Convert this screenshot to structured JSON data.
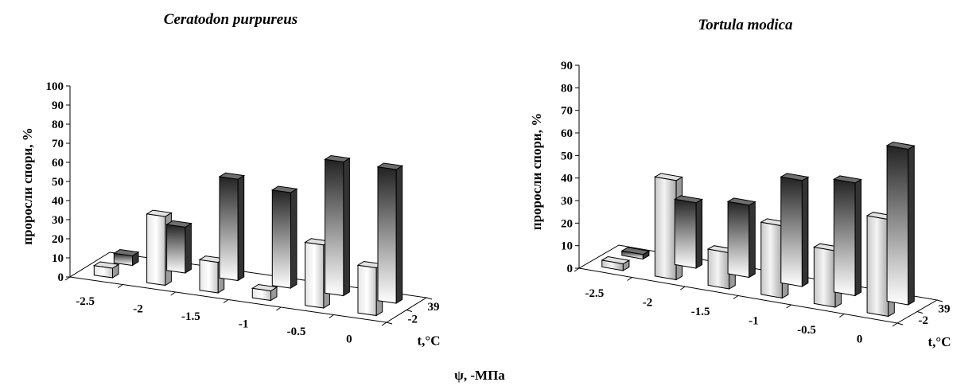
{
  "shared_xlabel": "ψ,  -МПа",
  "chart_data": [
    {
      "type": "bar",
      "title": "Ceratodon purpureus",
      "ylabel": "проросли спори, %",
      "xlabel": "",
      "zlabel": "t,°C",
      "categories": [
        "-2.5",
        "-2",
        "-1.5",
        "-1",
        "-0.5",
        "0"
      ],
      "depth_categories": [
        "39",
        "-2"
      ],
      "ylim": [
        0,
        100
      ],
      "yticks": [
        0,
        10,
        20,
        30,
        40,
        50,
        60,
        70,
        80,
        90,
        100
      ],
      "series": [
        {
          "name": "39",
          "values": [
            5,
            24,
            53,
            50,
            70,
            70
          ]
        },
        {
          "name": "-2",
          "values": [
            5,
            36,
            16,
            5,
            33,
            25
          ]
        }
      ]
    },
    {
      "type": "bar",
      "title": "Tortula modica",
      "ylabel": "проросли спори, %",
      "xlabel": "",
      "zlabel": "t,°C",
      "categories": [
        "-2.5",
        "-2",
        "-1.5",
        "-1",
        "-0.5",
        "0"
      ],
      "depth_categories": [
        "39",
        "-2"
      ],
      "ylim": [
        0,
        90
      ],
      "yticks": [
        0,
        10,
        20,
        30,
        40,
        50,
        60,
        70,
        80,
        90
      ],
      "series": [
        {
          "name": "39",
          "values": [
            2,
            29,
            32,
            47,
            50,
            69
          ]
        },
        {
          "name": "-2",
          "values": [
            3,
            44,
            16,
            32,
            25,
            43
          ]
        }
      ]
    }
  ]
}
